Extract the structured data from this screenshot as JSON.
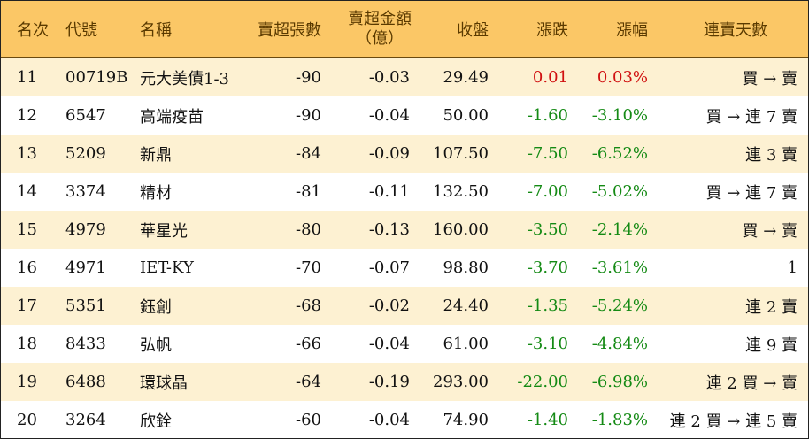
{
  "colors": {
    "header_bg": "#fbc766",
    "alt_row": "#fdf1d2",
    "up": "#d01010",
    "down": "#148a14"
  },
  "headers": {
    "rank": "名次",
    "code": "代號",
    "name": "名稱",
    "volume": "賣超張數",
    "amount_line1": "賣超金額",
    "amount_line2": "（億）",
    "close": "收盤",
    "change": "漲跌",
    "pct": "漲幅",
    "days": "連賣天數"
  },
  "rows": [
    {
      "rank": "11",
      "code": "00719B",
      "name": "元大美債1-3",
      "volume": "-90",
      "amount": "-0.03",
      "close": "29.49",
      "change": "0.01",
      "pct": "0.03%",
      "days": "買 → 賣",
      "dir": "up"
    },
    {
      "rank": "12",
      "code": "6547",
      "name": "高端疫苗",
      "volume": "-90",
      "amount": "-0.04",
      "close": "50.00",
      "change": "-1.60",
      "pct": "-3.10%",
      "days": "買 → 連 7 賣",
      "dir": "down"
    },
    {
      "rank": "13",
      "code": "5209",
      "name": "新鼎",
      "volume": "-84",
      "amount": "-0.09",
      "close": "107.50",
      "change": "-7.50",
      "pct": "-6.52%",
      "days": "連 3 賣",
      "dir": "down"
    },
    {
      "rank": "14",
      "code": "3374",
      "name": "精材",
      "volume": "-81",
      "amount": "-0.11",
      "close": "132.50",
      "change": "-7.00",
      "pct": "-5.02%",
      "days": "買 → 連 7 賣",
      "dir": "down"
    },
    {
      "rank": "15",
      "code": "4979",
      "name": "華星光",
      "volume": "-80",
      "amount": "-0.13",
      "close": "160.00",
      "change": "-3.50",
      "pct": "-2.14%",
      "days": "買 → 賣",
      "dir": "down"
    },
    {
      "rank": "16",
      "code": "4971",
      "name": "IET-KY",
      "volume": "-70",
      "amount": "-0.07",
      "close": "98.80",
      "change": "-3.70",
      "pct": "-3.61%",
      "days": "1",
      "dir": "down"
    },
    {
      "rank": "17",
      "code": "5351",
      "name": "鈺創",
      "volume": "-68",
      "amount": "-0.02",
      "close": "24.40",
      "change": "-1.35",
      "pct": "-5.24%",
      "days": "連 2 賣",
      "dir": "down"
    },
    {
      "rank": "18",
      "code": "8433",
      "name": "弘帆",
      "volume": "-66",
      "amount": "-0.04",
      "close": "61.00",
      "change": "-3.10",
      "pct": "-4.84%",
      "days": "連 9 賣",
      "dir": "down"
    },
    {
      "rank": "19",
      "code": "6488",
      "name": "環球晶",
      "volume": "-64",
      "amount": "-0.19",
      "close": "293.00",
      "change": "-22.00",
      "pct": "-6.98%",
      "days": "連 2 買 → 賣",
      "dir": "down"
    },
    {
      "rank": "20",
      "code": "3264",
      "name": "欣銓",
      "volume": "-60",
      "amount": "-0.04",
      "close": "74.90",
      "change": "-1.40",
      "pct": "-1.83%",
      "days": "連 2 買 → 連 5 賣",
      "dir": "down"
    }
  ]
}
